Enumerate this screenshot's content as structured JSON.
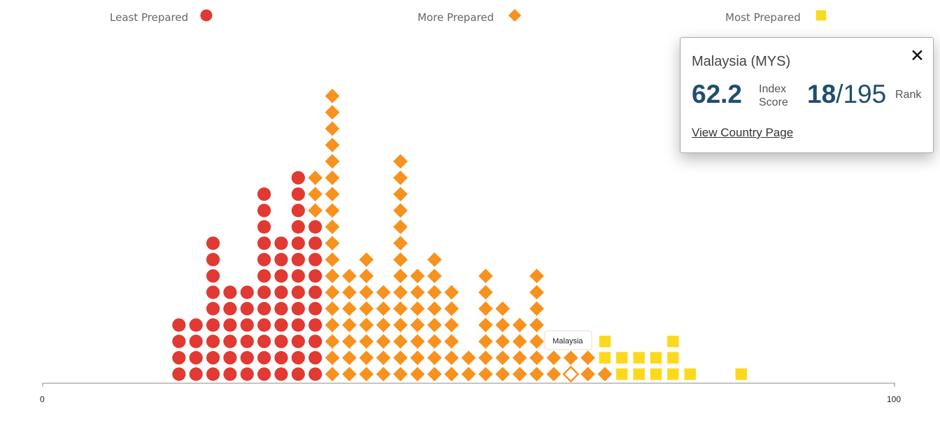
{
  "legend": [
    {
      "label": "Least Prepared",
      "shape": "circle",
      "color": "#e03a33"
    },
    {
      "label": "More Prepared",
      "shape": "diamond",
      "color": "#f7921e"
    },
    {
      "label": "Most Prepared",
      "shape": "square",
      "color": "#fbd91f"
    }
  ],
  "chart_data": {
    "type": "scatter",
    "description_type": "unit dot histogram",
    "xlim": [
      0,
      100
    ],
    "x_ticks": [
      "0",
      "100"
    ],
    "bin_width": 2,
    "columns": [
      {
        "x": 16,
        "count": 4,
        "group": "Least Prepared"
      },
      {
        "x": 18,
        "count": 4,
        "group": "Least Prepared"
      },
      {
        "x": 20,
        "count": 9,
        "group": "Least Prepared"
      },
      {
        "x": 22,
        "count": 6,
        "group": "Least Prepared"
      },
      {
        "x": 24,
        "count": 6,
        "group": "Least Prepared"
      },
      {
        "x": 26,
        "count": 12,
        "group": "Least Prepared"
      },
      {
        "x": 28,
        "count": 9,
        "group": "Least Prepared"
      },
      {
        "x": 30,
        "count": 13,
        "group": "Least Prepared"
      },
      {
        "x": 32,
        "count": 10,
        "group": "Least Prepared",
        "stack_above": {
          "group": "More Prepared",
          "count": 3
        }
      },
      {
        "x": 34,
        "count": 18,
        "group": "More Prepared"
      },
      {
        "x": 36,
        "count": 7,
        "group": "More Prepared"
      },
      {
        "x": 38,
        "count": 8,
        "group": "More Prepared"
      },
      {
        "x": 40,
        "count": 6,
        "group": "More Prepared"
      },
      {
        "x": 42,
        "count": 14,
        "group": "More Prepared"
      },
      {
        "x": 44,
        "count": 7,
        "group": "More Prepared"
      },
      {
        "x": 46,
        "count": 8,
        "group": "More Prepared"
      },
      {
        "x": 48,
        "count": 6,
        "group": "More Prepared"
      },
      {
        "x": 50,
        "count": 2,
        "group": "More Prepared"
      },
      {
        "x": 52,
        "count": 7,
        "group": "More Prepared"
      },
      {
        "x": 54,
        "count": 5,
        "group": "More Prepared"
      },
      {
        "x": 56,
        "count": 4,
        "group": "More Prepared"
      },
      {
        "x": 58,
        "count": 7,
        "group": "More Prepared"
      },
      {
        "x": 60,
        "count": 2,
        "group": "More Prepared"
      },
      {
        "x": 62,
        "count": 2,
        "group": "More Prepared",
        "highlight_index": 0
      },
      {
        "x": 64,
        "count": 2,
        "group": "More Prepared"
      },
      {
        "x": 66,
        "count": 1,
        "group": "More Prepared"
      },
      {
        "x": 66,
        "count": 2,
        "group": "Most Prepared",
        "stack_on_previous": true
      },
      {
        "x": 68,
        "count": 2,
        "group": "Most Prepared"
      },
      {
        "x": 70,
        "count": 2,
        "group": "Most Prepared"
      },
      {
        "x": 72,
        "count": 2,
        "group": "Most Prepared"
      },
      {
        "x": 74,
        "count": 3,
        "group": "Most Prepared"
      },
      {
        "x": 76,
        "count": 1,
        "group": "Most Prepared"
      },
      {
        "x": 82,
        "count": 1,
        "group": "Most Prepared"
      }
    ],
    "hover_label": "Malaysia"
  },
  "popup": {
    "title": "Malaysia (MYS)",
    "close": "✕",
    "score": "62.2",
    "score_label": "Index Score",
    "rank": "18",
    "rank_sep": "/",
    "rank_total": "195",
    "rank_label": "Rank",
    "link": "View Country Page"
  }
}
